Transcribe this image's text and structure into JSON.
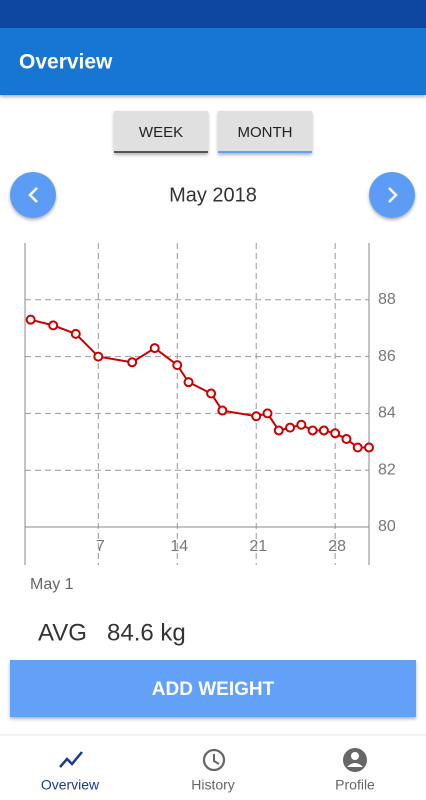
{
  "app_bar": {
    "title": "Overview"
  },
  "tabs": [
    {
      "label": "WEEK",
      "selected": false
    },
    {
      "label": "MONTH",
      "selected": true
    }
  ],
  "period": {
    "label": "May 2018"
  },
  "chart_data": {
    "type": "line",
    "x": [
      1,
      3,
      5,
      7,
      10,
      12,
      14,
      15,
      17,
      18,
      21,
      22,
      23,
      24,
      25,
      26,
      27,
      28,
      29,
      30,
      31
    ],
    "series": [
      {
        "color": "#cc0000",
        "values": [
          87.3,
          87.1,
          86.8,
          86.0,
          85.8,
          86.3,
          85.7,
          85.1,
          84.7,
          84.1,
          83.9,
          84.0,
          83.4,
          83.5,
          83.6,
          83.4,
          83.4,
          83.3,
          83.1,
          82.8,
          82.8
        ]
      }
    ],
    "xlim": [
      0.5,
      31
    ],
    "ylim": [
      80,
      90
    ],
    "xticks": [
      7,
      14,
      21,
      28
    ],
    "yticks": [
      80,
      82,
      84,
      86,
      88
    ],
    "grid": true,
    "y_axis_side": "right"
  },
  "selected_date": "May 1",
  "average": {
    "label": "AVG",
    "value": "84.6 kg"
  },
  "action_button": {
    "label": "ADD WEIGHT"
  },
  "nav": [
    {
      "label": "Overview",
      "active": true
    },
    {
      "label": "History",
      "active": false
    },
    {
      "label": "Profile",
      "active": false
    }
  ]
}
